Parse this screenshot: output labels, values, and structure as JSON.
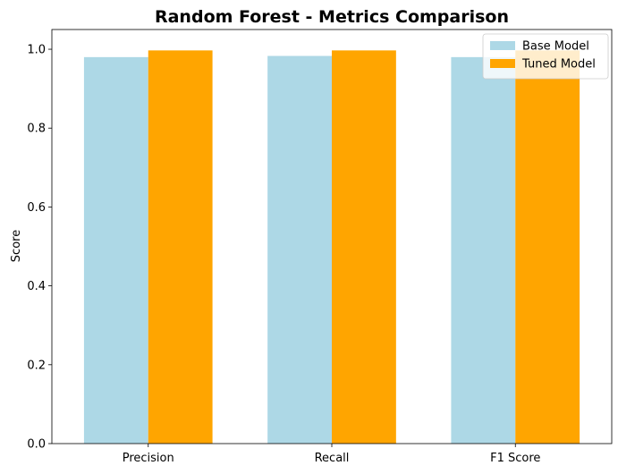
{
  "chart_data": {
    "type": "bar",
    "title": "Random Forest - Metrics Comparison",
    "xlabel": "",
    "ylabel": "Score",
    "categories": [
      "Precision",
      "Recall",
      "F1 Score"
    ],
    "series": [
      {
        "name": "Base Model",
        "values": [
          0.98,
          0.983,
          0.98
        ],
        "color": "#add8e6"
      },
      {
        "name": "Tuned Model",
        "values": [
          0.997,
          0.997,
          0.997
        ],
        "color": "#ffa500"
      }
    ],
    "ylim": [
      0,
      1.05
    ],
    "yticks": [
      "0.0",
      "0.2",
      "0.4",
      "0.6",
      "0.8",
      "1.0"
    ],
    "grid": false,
    "legend": "top-right"
  }
}
